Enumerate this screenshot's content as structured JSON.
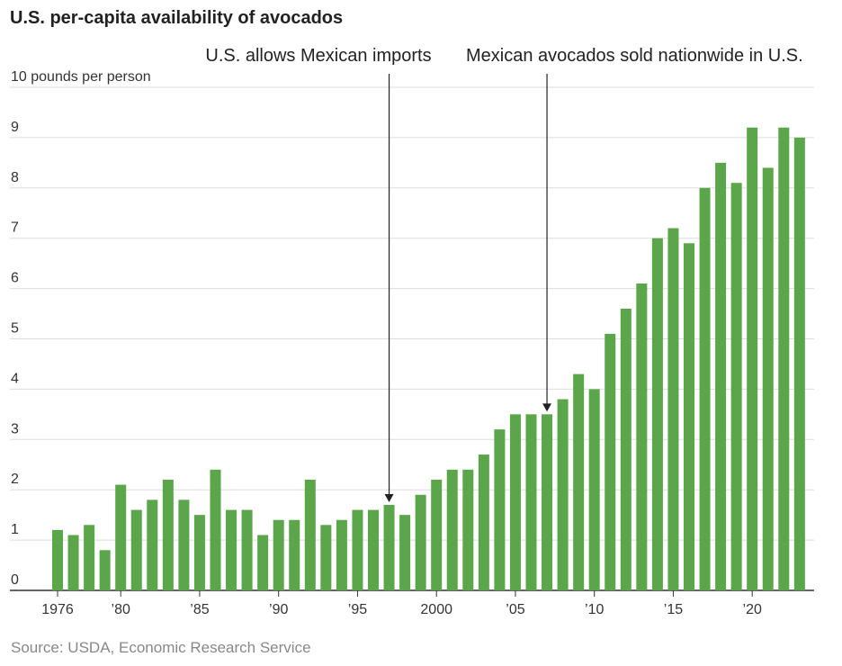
{
  "title": "U.S. per-capita availability of avocados",
  "source": "Source: USDA, Economic Research Service",
  "colors": {
    "bar": "#5ba54a",
    "grid": "#dddddd",
    "axis": "#333333",
    "annotation": "#222222"
  },
  "chart_data": {
    "type": "bar",
    "title": "U.S. per-capita availability of avocados",
    "ylabel": "10 pounds per person",
    "ylim": [
      0,
      10
    ],
    "grid": true,
    "y_ticks": [
      {
        "value": 0,
        "label": "0"
      },
      {
        "value": 1,
        "label": "1"
      },
      {
        "value": 2,
        "label": "2"
      },
      {
        "value": 3,
        "label": "3"
      },
      {
        "value": 4,
        "label": "4"
      },
      {
        "value": 5,
        "label": "5"
      },
      {
        "value": 6,
        "label": "6"
      },
      {
        "value": 7,
        "label": "7"
      },
      {
        "value": 8,
        "label": "8"
      },
      {
        "value": 9,
        "label": "9"
      },
      {
        "value": 10,
        "label": "10 pounds per person"
      }
    ],
    "x_ticks": [
      {
        "year": 1976,
        "label": "1976"
      },
      {
        "year": 1980,
        "label": "’80"
      },
      {
        "year": 1985,
        "label": "’85"
      },
      {
        "year": 1990,
        "label": "’90"
      },
      {
        "year": 1995,
        "label": "’95"
      },
      {
        "year": 2000,
        "label": "2000"
      },
      {
        "year": 2005,
        "label": "’05"
      },
      {
        "year": 2010,
        "label": "’10"
      },
      {
        "year": 2015,
        "label": "’15"
      },
      {
        "year": 2020,
        "label": "’20"
      }
    ],
    "categories": [
      1976,
      1977,
      1978,
      1979,
      1980,
      1981,
      1982,
      1983,
      1984,
      1985,
      1986,
      1987,
      1988,
      1989,
      1990,
      1991,
      1992,
      1993,
      1994,
      1995,
      1996,
      1997,
      1998,
      1999,
      2000,
      2001,
      2002,
      2003,
      2004,
      2005,
      2006,
      2007,
      2008,
      2009,
      2010,
      2011,
      2012,
      2013,
      2014,
      2015,
      2016,
      2017,
      2018,
      2019,
      2020,
      2021,
      2022,
      2023
    ],
    "values": [
      1.2,
      1.1,
      1.3,
      0.8,
      2.1,
      1.6,
      1.8,
      2.2,
      1.8,
      1.5,
      2.4,
      1.6,
      1.6,
      1.1,
      1.4,
      1.4,
      2.2,
      1.3,
      1.4,
      1.6,
      1.6,
      1.7,
      1.5,
      1.9,
      2.2,
      2.4,
      2.4,
      2.7,
      3.2,
      3.5,
      3.5,
      3.5,
      3.8,
      4.3,
      4.0,
      5.1,
      5.6,
      6.1,
      7.0,
      7.2,
      6.9,
      8.0,
      8.5,
      8.1,
      9.2,
      8.4,
      9.2,
      9.0
    ],
    "annotations": [
      {
        "year": 1997,
        "text": "U.S. allows Mexican imports"
      },
      {
        "year": 2007,
        "text": "Mexican avocados sold nationwide in U.S."
      }
    ]
  }
}
